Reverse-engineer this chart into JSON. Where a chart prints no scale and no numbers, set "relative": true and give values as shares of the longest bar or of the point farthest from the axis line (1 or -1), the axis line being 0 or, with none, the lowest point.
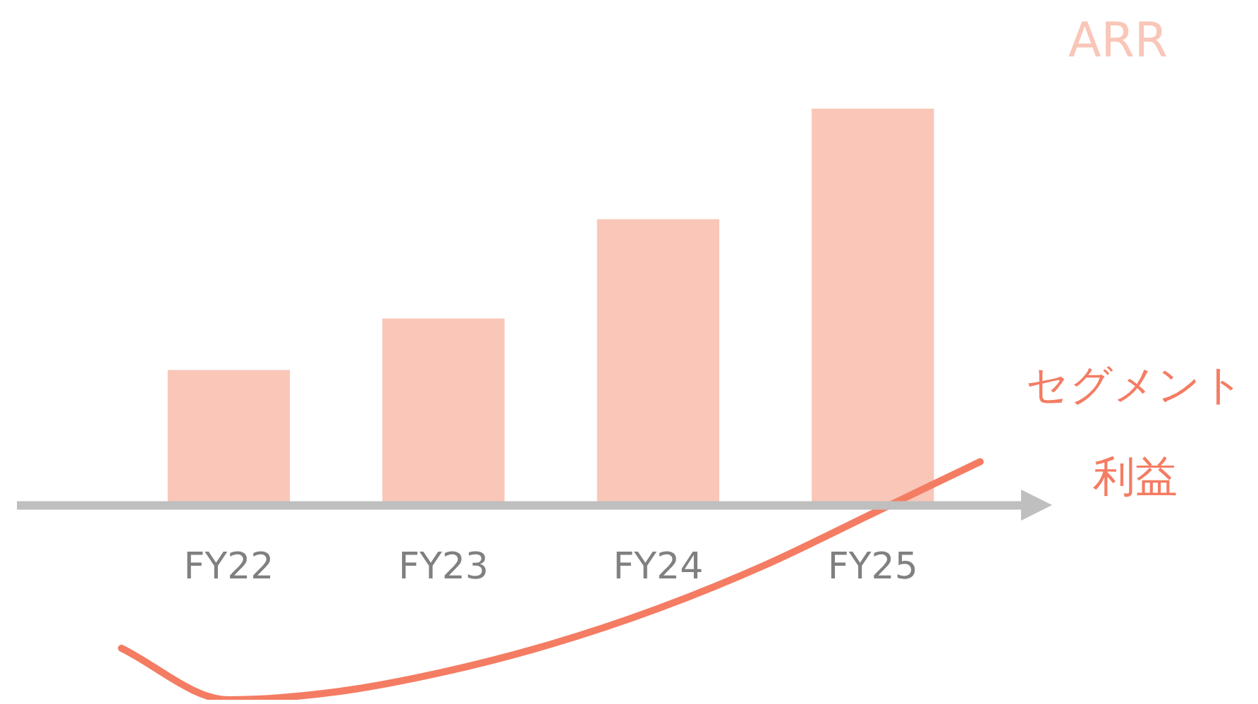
{
  "chart_data": {
    "type": "bar",
    "relative": true,
    "categories": [
      null,
      null,
      "FY22",
      null,
      "FY23",
      null,
      "FY24",
      null,
      "FY25",
      null
    ],
    "marker": "none",
    "line_style": "solid",
    "series": [
      {
        "name": "ARR",
        "color": "#f9c6b8",
        "values": [
          null,
          null,
          0.34,
          null,
          0.47,
          null,
          0.72,
          null,
          1,
          null
        ]
      },
      {
        "name": "セグメント利益",
        "type": "line",
        "color": "#f47c63",
        "values": [
          null,
          -0.36,
          -0.49,
          -0.47,
          -0.42,
          -0.35,
          -0.26,
          -0.15,
          -0.02,
          0.11
        ]
      }
    ]
  }
}
